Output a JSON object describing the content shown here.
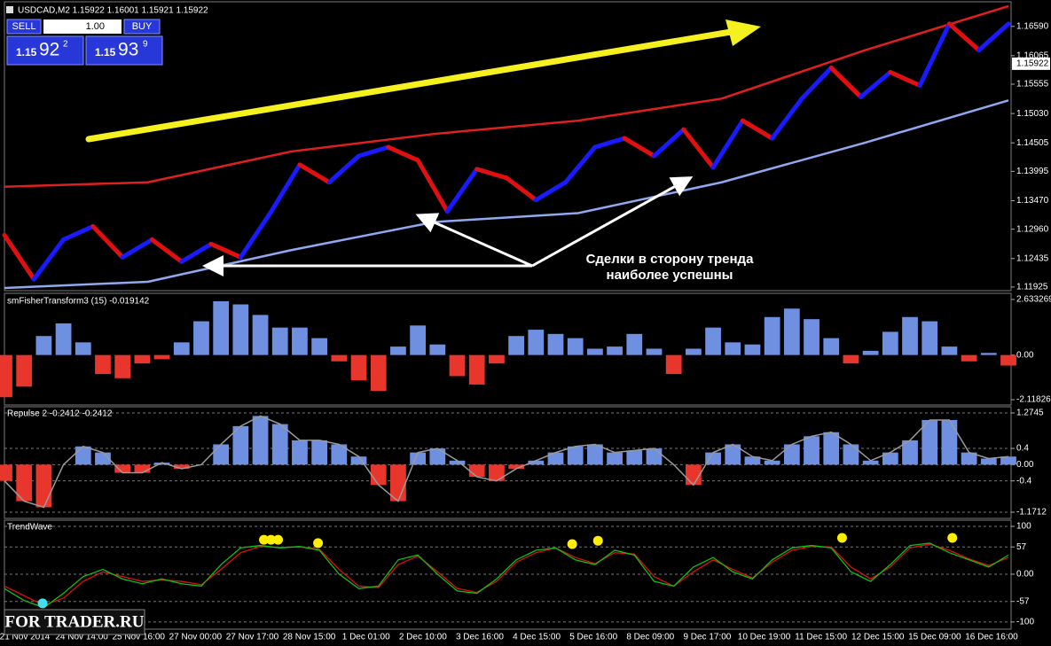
{
  "main": {
    "title": "USDCAD,M2  1.15922 1.16001 1.15921 1.15922",
    "sell": "SELL",
    "lot": "1.00",
    "buy": "BUY",
    "sell_price": {
      "prefix": "1.15",
      "big": "92",
      "sup": "2"
    },
    "buy_price": {
      "prefix": "1.15",
      "big": "93",
      "sup": "9"
    },
    "annotation": [
      "Сделки в сторону тренда",
      "наиболее успешны"
    ],
    "ylim": [
      1.1186,
      1.1703
    ],
    "yticks": [
      {
        "value": 1.1659,
        "label": "1.16590"
      },
      {
        "value": 1.16065,
        "label": "1.16065"
      },
      {
        "value": 1.15555,
        "label": "1.15555"
      },
      {
        "value": 1.1503,
        "label": "1.15030"
      },
      {
        "value": 1.14505,
        "label": "1.14505"
      },
      {
        "value": 1.13995,
        "label": "1.13995"
      },
      {
        "value": 1.1347,
        "label": "1.13470"
      },
      {
        "value": 1.1296,
        "label": "1.12960"
      },
      {
        "value": 1.12435,
        "label": "1.12435"
      },
      {
        "value": 1.11925,
        "label": "1.11925"
      }
    ],
    "current_price": {
      "value": 1.15922,
      "label": "1.15922"
    },
    "close": [
      1.12853,
      1.12065,
      1.12774,
      1.13011,
      1.12459,
      1.12774,
      1.1238,
      1.12695,
      1.12459,
      1.13247,
      1.14114,
      1.13799,
      1.14271,
      1.14429,
      1.14193,
      1.13279,
      1.14035,
      1.13878,
      1.13483,
      1.13799,
      1.14429,
      1.14587,
      1.14271,
      1.14744,
      1.14067,
      1.14902,
      1.14587,
      1.15296,
      1.15848,
      1.15328,
      1.15769,
      1.15533,
      1.16636,
      1.16163,
      1.16636
    ],
    "up_color": "#1a1aff",
    "down_color": "#e01010",
    "upper_band": {
      "color": "#e02020",
      "values": [
        1.1372,
        1.13799,
        1.14351,
        1.14666,
        1.14902,
        1.15296,
        1.16163,
        1.16951
      ]
    },
    "lower_band": {
      "color": "#8fa8f0",
      "values": [
        1.11908,
        1.12019,
        1.12586,
        1.1309,
        1.13248,
        1.13799,
        1.14508,
        1.15265
      ]
    }
  },
  "fisher": {
    "title": "smFisherTransform3 (15) -0.019142",
    "ylim": [
      -2.368,
      2.925
    ],
    "yticks": [
      2.633269,
      {
        "value": 0,
        "label": "0.00"
      },
      -2.118263
    ],
    "pos_color": "#6f8fe0",
    "neg_color": "#e8362c",
    "dashed_grid": false,
    "values": [
      -2.0,
      -1.5,
      0.9,
      1.5,
      0.6,
      -0.9,
      -1.1,
      -0.4,
      -0.2,
      0.6,
      1.6,
      2.55,
      2.4,
      1.9,
      1.3,
      1.3,
      0.8,
      -0.3,
      -1.2,
      -1.7,
      0.4,
      1.4,
      0.5,
      -1.0,
      -1.4,
      -0.4,
      0.9,
      1.2,
      1.0,
      0.8,
      0.3,
      0.4,
      1.0,
      0.3,
      -0.9,
      0.3,
      1.3,
      0.6,
      0.5,
      1.8,
      2.2,
      1.7,
      0.8,
      -0.4,
      0.2,
      1.1,
      1.8,
      1.6,
      0.4,
      -0.3,
      0.1,
      -0.5
    ]
  },
  "repulse": {
    "title": "Repulse 2 -0.2412 -0.2412",
    "ylim": [
      -1.324,
      1.4273
    ],
    "yticks": [
      1.2745,
      0.4,
      {
        "value": 0,
        "label": "0.00"
      },
      -0.4,
      -1.1712
    ],
    "pos_color": "#6f8fe0",
    "neg_color": "#e8362c",
    "dashed_grid": true,
    "outline": "#9a9a9a",
    "values": [
      -0.4,
      -0.9,
      -1.05,
      0.0,
      0.45,
      0.3,
      -0.2,
      -0.2,
      0.05,
      -0.1,
      0.0,
      0.5,
      0.95,
      1.2,
      1.0,
      0.6,
      0.6,
      0.5,
      0.2,
      -0.5,
      -0.9,
      0.3,
      0.4,
      0.1,
      -0.3,
      -0.4,
      -0.1,
      0.1,
      0.3,
      0.45,
      0.5,
      0.3,
      0.35,
      0.4,
      0.0,
      -0.5,
      0.3,
      0.5,
      0.2,
      0.1,
      0.5,
      0.7,
      0.8,
      0.5,
      0.1,
      0.3,
      0.6,
      1.1,
      1.1,
      0.3,
      0.15,
      0.2
    ]
  },
  "trendwave": {
    "title": "TrendWave",
    "ylim": [
      -115,
      113
    ],
    "yticks": [
      100,
      57,
      {
        "value": 0,
        "label": "0.00"
      },
      -57,
      -100
    ],
    "dashed_grid": true,
    "green": {
      "color": "#10c010",
      "values": [
        -30,
        -55,
        -70,
        -40,
        -5,
        10,
        -10,
        -20,
        -10,
        -20,
        -25,
        20,
        55,
        60,
        55,
        58,
        50,
        0,
        -30,
        -25,
        30,
        40,
        0,
        -35,
        -40,
        -10,
        30,
        50,
        55,
        30,
        20,
        50,
        40,
        -15,
        -25,
        15,
        35,
        5,
        -10,
        30,
        55,
        60,
        55,
        5,
        -15,
        20,
        60,
        65,
        45,
        30,
        15,
        40
      ]
    },
    "red": {
      "color": "#e01010",
      "values": [
        -25,
        -45,
        -65,
        -50,
        -15,
        5,
        -5,
        -15,
        -12,
        -15,
        -22,
        10,
        45,
        58,
        56,
        57,
        52,
        10,
        -25,
        -28,
        20,
        38,
        5,
        -30,
        -38,
        -15,
        25,
        45,
        55,
        35,
        22,
        45,
        42,
        -5,
        -25,
        5,
        30,
        10,
        -8,
        25,
        50,
        58,
        57,
        15,
        -10,
        15,
        55,
        63,
        50,
        32,
        18,
        35
      ]
    },
    "yellow_dots": {
      "color": "#ffee00",
      "x": [
        13.18,
        13.54,
        13.9,
        15.93,
        28.84,
        30.15,
        42.55,
        48.15
      ],
      "values": [
        72,
        72,
        72,
        65,
        63,
        70,
        76,
        76
      ]
    },
    "cyan_dots": {
      "color": "#40e0f0",
      "x": [
        1.94
      ],
      "values": [
        -61
      ]
    }
  },
  "time_axis": [
    "21 Nov 2014",
    "24 Nov 14:00",
    "25 Nov 16:00",
    "27 Nov 00:00",
    "27 Nov 17:00",
    "28 Nov 15:00",
    "1 Dec 01:00",
    "2 Dec 10:00",
    "3 Dec 16:00",
    "4 Dec 15:00",
    "5 Dec 16:00",
    "8 Dec 09:00",
    "9 Dec 17:00",
    "10 Dec 19:00",
    "11 Dec 15:00",
    "12 Dec 15:00",
    "15 Dec 09:00",
    "16 Dec 16:00"
  ],
  "watermark": "FOR TRADER.RU"
}
